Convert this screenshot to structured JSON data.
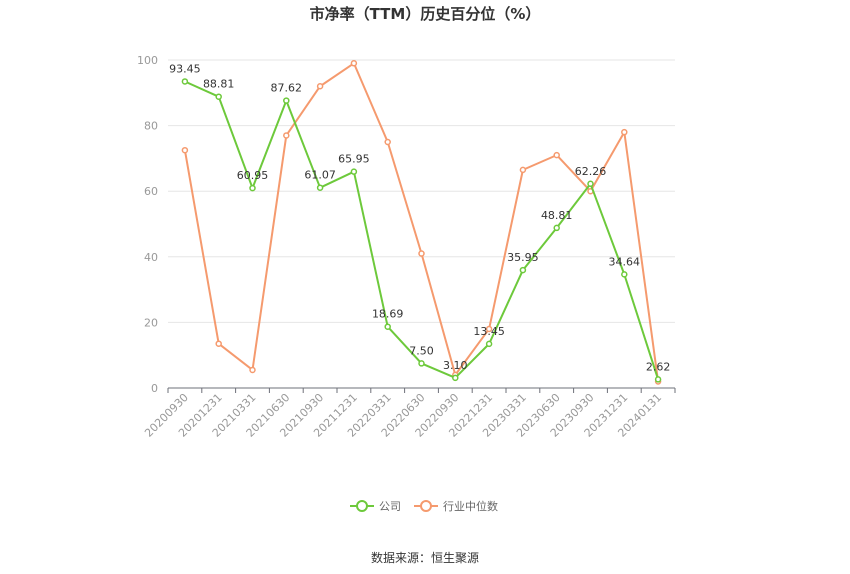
{
  "chart_data": {
    "type": "line",
    "title": "市净率（TTM）历史百分位（%）",
    "xlabel": "",
    "ylabel": "",
    "ylim": [
      0,
      100
    ],
    "yticks": [
      0,
      20,
      40,
      60,
      80,
      100
    ],
    "grid": true,
    "legend_position": "bottom",
    "categories": [
      "20200930",
      "20201231",
      "20210331",
      "20210630",
      "20210930",
      "20211231",
      "20220331",
      "20220630",
      "20220930",
      "20221231",
      "20230331",
      "20230630",
      "20230930",
      "20231231",
      "20240131"
    ],
    "series": [
      {
        "name": "公司",
        "color": "#6dc93b",
        "values": [
          93.45,
          88.81,
          60.95,
          87.62,
          61.07,
          65.95,
          18.69,
          7.5,
          3.1,
          13.45,
          35.95,
          48.81,
          62.26,
          34.64,
          2.62
        ],
        "labels": [
          "93.45",
          "88.81",
          "60.95",
          "87.62",
          "61.07",
          "65.95",
          "18.69",
          "7.50",
          "3.10",
          "13.45",
          "35.95",
          "48.81",
          "62.26",
          "34.64",
          "2.62"
        ],
        "show_labels": true
      },
      {
        "name": "行业中位数",
        "color": "#f59a6e",
        "values": [
          72.5,
          13.5,
          5.5,
          77.0,
          92.0,
          99.0,
          75.0,
          41.0,
          4.0,
          18.0,
          66.5,
          71.0,
          60.0,
          78.0,
          2.0
        ],
        "show_labels": false
      }
    ]
  },
  "source_text": "数据来源：恒生聚源"
}
